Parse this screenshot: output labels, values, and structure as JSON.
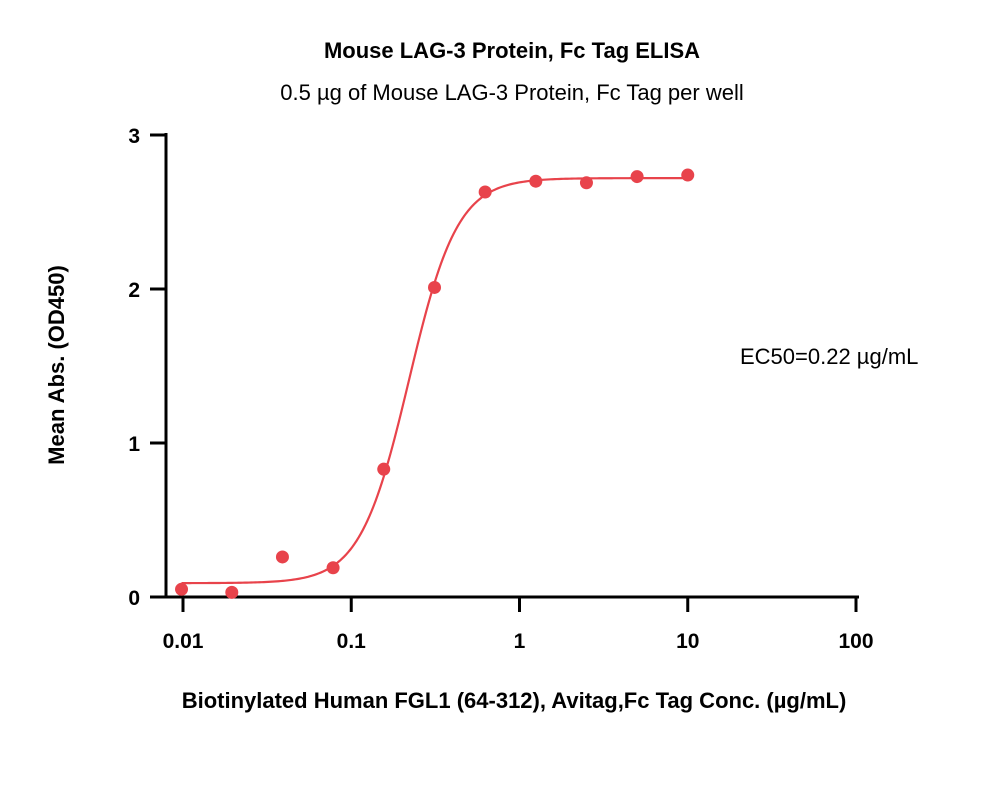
{
  "chart_data": {
    "type": "scatter",
    "title": "Mouse LAG-3 Protein, Fc Tag ELISA",
    "subtitle": "0.5 µg of Mouse LAG-3 Protein, Fc Tag per well",
    "xlabel": "Biotinylated Human FGL1 (64-312), Avitag,Fc Tag Conc. (µg/mL)",
    "ylabel": "Mean Abs. (OD450)",
    "x_scale": "log",
    "xlim": [
      0.01,
      100
    ],
    "ylim": [
      0,
      3
    ],
    "x_ticks": [
      0.01,
      0.1,
      1,
      10,
      100
    ],
    "x_tick_labels": [
      "0.01",
      "0.1",
      "1",
      "10",
      "100"
    ],
    "y_ticks": [
      0,
      1,
      2,
      3
    ],
    "y_tick_labels": [
      "0",
      "1",
      "2",
      "3"
    ],
    "grid": false,
    "color": "#e8434b",
    "points": {
      "x": [
        0.0098,
        0.0195,
        0.039,
        0.078,
        0.156,
        0.3125,
        0.625,
        1.25,
        2.5,
        5,
        10
      ],
      "y": [
        0.05,
        0.03,
        0.26,
        0.19,
        0.83,
        2.01,
        2.63,
        2.7,
        2.69,
        2.73,
        2.74
      ]
    },
    "fit": {
      "model": "4PL",
      "bottom": 0.09,
      "top": 2.72,
      "ec50": 0.22,
      "hill": 3.0,
      "x_range": [
        0.0098,
        10
      ]
    },
    "annotation": "EC50=0.22 µg/mL"
  }
}
